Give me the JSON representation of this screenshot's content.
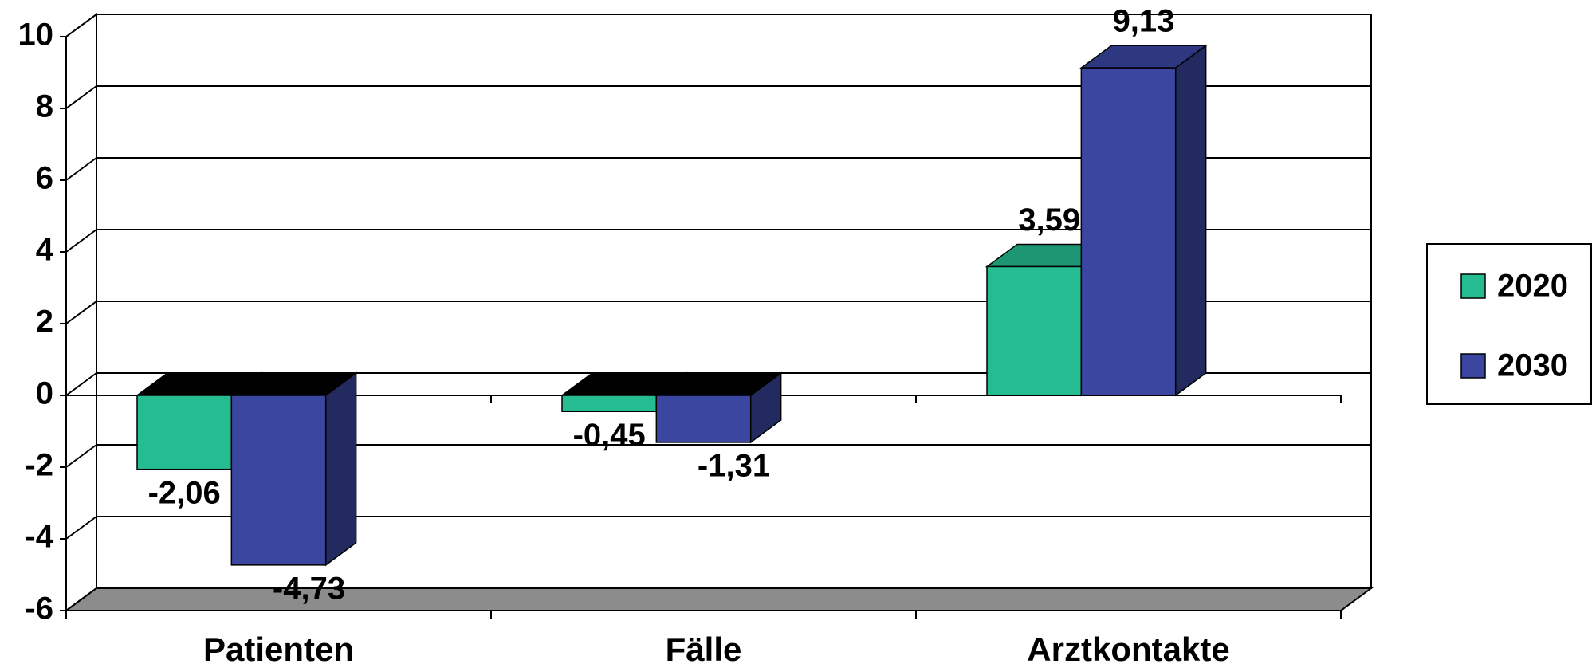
{
  "chart_data": {
    "type": "bar3d",
    "categories": [
      "Patienten",
      "Fälle",
      "Arztkontakte"
    ],
    "series": [
      {
        "name": "2020",
        "color": "#26bc91",
        "values": [
          -2.06,
          -0.45,
          3.59
        ],
        "value_labels": [
          "-2,06",
          "-0,45",
          "3,59"
        ]
      },
      {
        "name": "2030",
        "color": "#3a46a0",
        "values": [
          -4.73,
          -1.31,
          9.13
        ],
        "value_labels": [
          "-4,73",
          "-1,31",
          "9,13"
        ]
      }
    ],
    "ylim": [
      -6,
      10
    ],
    "yticks": [
      -6,
      -4,
      -2,
      0,
      2,
      4,
      6,
      8,
      10
    ],
    "grid": true,
    "legend": "right"
  }
}
